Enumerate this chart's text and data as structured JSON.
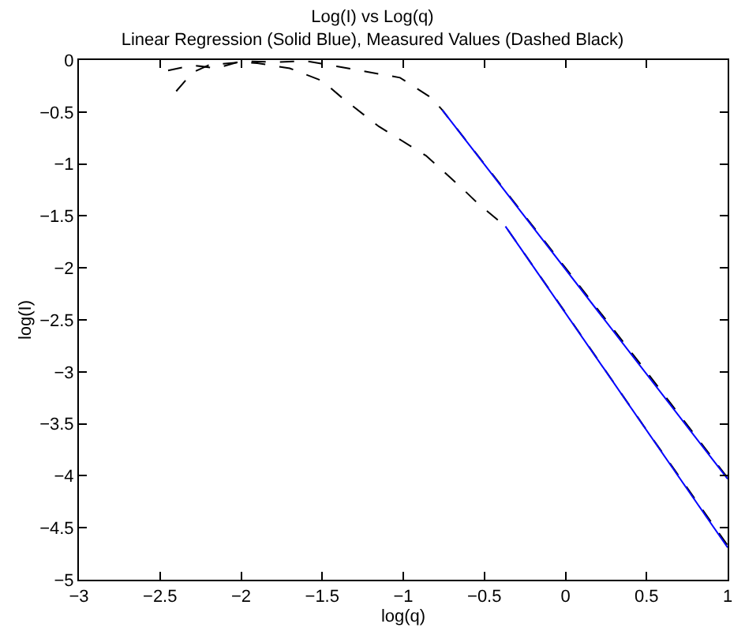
{
  "chart_data": {
    "type": "line",
    "title": "Log(I) vs Log(q)",
    "subtitle": "Linear Regression (Solid Blue), Measured Values (Dashed Black)",
    "xlabel": "log(q)",
    "ylabel": "log(I)",
    "xlim": [
      -3,
      1
    ],
    "ylim": [
      -5,
      0
    ],
    "xticks": [
      -3,
      -2.5,
      -2,
      -1.5,
      -1,
      -0.5,
      0,
      0.5,
      1
    ],
    "yticks": [
      -5,
      -4.5,
      -4,
      -3.5,
      -3,
      -2.5,
      -2,
      -1.5,
      -1,
      -0.5,
      0
    ],
    "marker": "none",
    "series": [
      {
        "color": "#000000",
        "line_style": "dashed",
        "x": [
          -2.45,
          -2.3,
          -2.15,
          -2.0,
          -1.8,
          -1.6,
          -1.41,
          -1.02,
          -0.83,
          -0.76,
          -0.5,
          0,
          0.5,
          1
        ],
        "values": [
          -0.1,
          -0.05,
          -0.08,
          -0.01,
          -0.02,
          -0.01,
          -0.06,
          -0.17,
          -0.36,
          -0.48,
          -1.0,
          -2.0,
          -3.0,
          -4.02
        ]
      },
      {
        "color": "#000000",
        "line_style": "dashed",
        "x": [
          -2.4,
          -2.3,
          -2.2,
          -2.0,
          -1.9,
          -1.7,
          -1.5,
          -1.38,
          -1.15,
          -0.86,
          -0.64,
          -0.54,
          -0.37,
          0,
          0.5,
          1
        ],
        "values": [
          -0.3,
          -0.12,
          -0.05,
          -0.02,
          -0.03,
          -0.08,
          -0.2,
          -0.36,
          -0.64,
          -0.92,
          -1.23,
          -1.38,
          -1.6,
          -2.43,
          -3.56,
          -4.67
        ]
      },
      {
        "color": "#0000ff",
        "line_style": "solid",
        "x": [
          -0.76,
          1
        ],
        "values": [
          -0.48,
          -4.03
        ]
      },
      {
        "color": "#0000ff",
        "line_style": "solid",
        "x": [
          -0.37,
          1
        ],
        "values": [
          -1.6,
          -4.69
        ]
      }
    ]
  }
}
